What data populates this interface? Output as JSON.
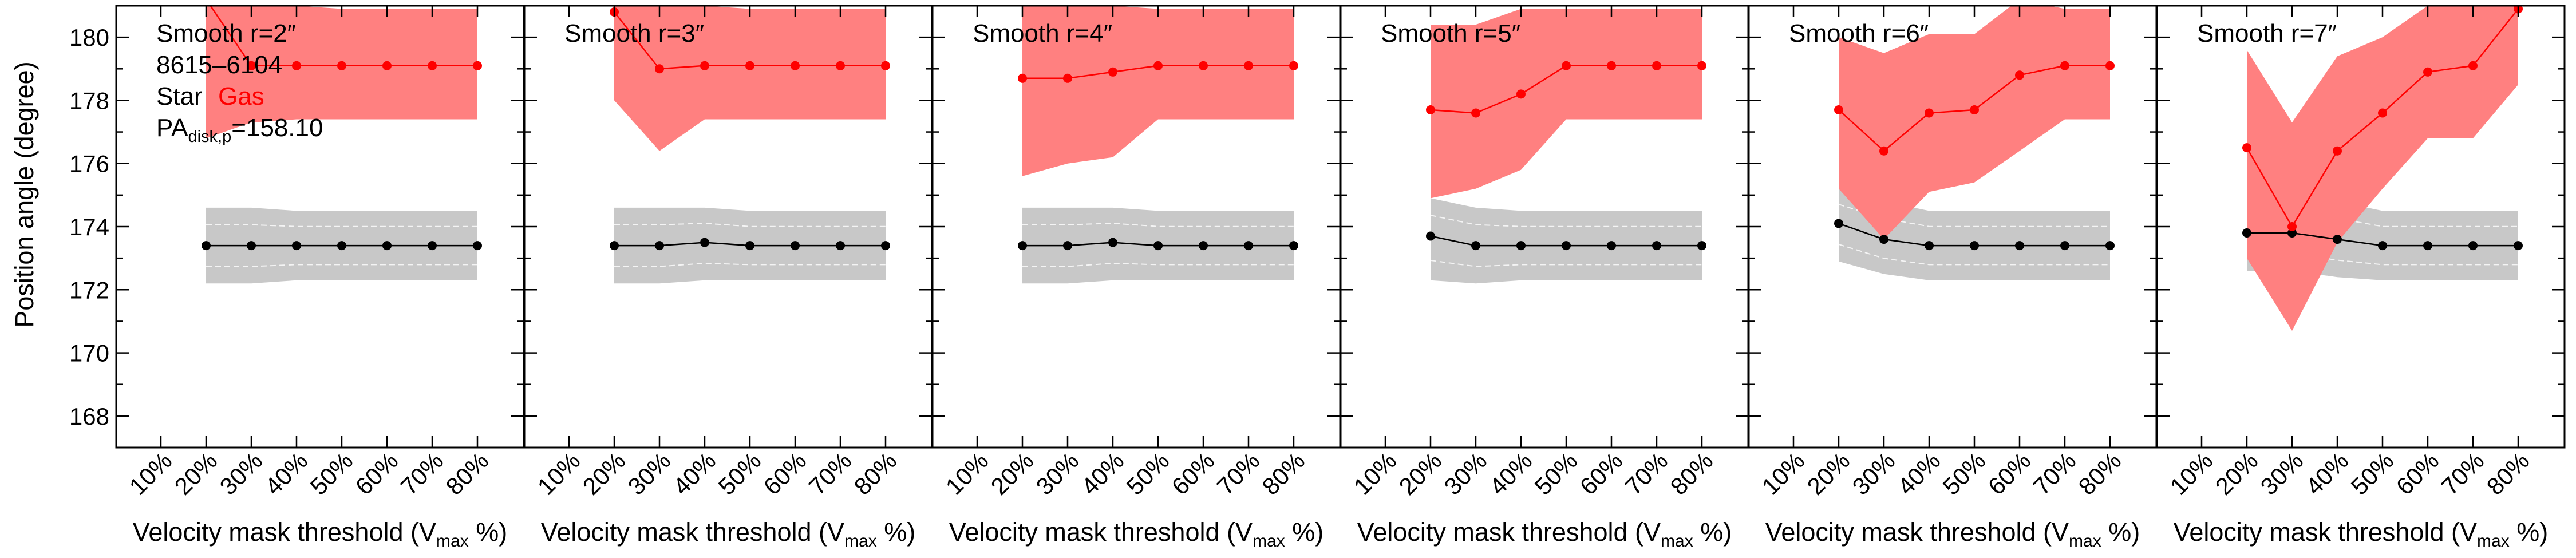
{
  "figure": {
    "ylabel": "Position angle (degree)",
    "xlabel_main": "Velocity mask threshold (V",
    "xlabel_sub": "max",
    "xlabel_tail": " %)",
    "annotation": {
      "galaxy_id": "8615–6104",
      "star_label": "Star",
      "gas_label": "Gas",
      "pa_main": "PA",
      "pa_sub": "disk,p",
      "pa_value": "=158.10"
    },
    "colors": {
      "star_line": "#000000",
      "star_band": "#c8c8c8",
      "gas_line": "#ff0000",
      "gas_band": "#ff8080",
      "inner_dash": "#ffffff"
    }
  },
  "chart_data": [
    {
      "type": "line",
      "title": "Smooth r=2″",
      "categories": [
        "10%",
        "20%",
        "30%",
        "40%",
        "50%",
        "60%",
        "70%",
        "80%"
      ],
      "ylim": [
        167,
        181
      ],
      "yticks": [
        168,
        170,
        172,
        174,
        176,
        178,
        180
      ],
      "grid": false,
      "series": [
        {
          "name": "Star",
          "x": [
            "20%",
            "30%",
            "40%",
            "50%",
            "60%",
            "70%",
            "80%"
          ],
          "values": [
            173.4,
            173.4,
            173.4,
            173.4,
            173.4,
            173.4,
            173.4
          ],
          "band_low": [
            172.2,
            172.2,
            172.3,
            172.3,
            172.3,
            172.3,
            172.3
          ],
          "band_high": [
            174.6,
            174.6,
            174.5,
            174.5,
            174.5,
            174.5,
            174.5
          ]
        },
        {
          "name": "Gas",
          "x": [
            "20%",
            "30%",
            "40%",
            "50%",
            "60%",
            "70%",
            "80%"
          ],
          "values": [
            181.2,
            179.1,
            179.1,
            179.1,
            179.1,
            179.1,
            179.1
          ],
          "band_low": [
            176.8,
            177.3,
            177.4,
            177.4,
            177.4,
            177.4,
            177.4
          ],
          "band_high": [
            181.2,
            181.2,
            181.0,
            180.9,
            180.9,
            180.9,
            180.9
          ]
        }
      ]
    },
    {
      "type": "line",
      "title": "Smooth r=3″",
      "categories": [
        "10%",
        "20%",
        "30%",
        "40%",
        "50%",
        "60%",
        "70%",
        "80%"
      ],
      "ylim": [
        167,
        181
      ],
      "yticks": [
        168,
        170,
        172,
        174,
        176,
        178,
        180
      ],
      "grid": false,
      "series": [
        {
          "name": "Star",
          "x": [
            "20%",
            "30%",
            "40%",
            "50%",
            "60%",
            "70%",
            "80%"
          ],
          "values": [
            173.4,
            173.4,
            173.5,
            173.4,
            173.4,
            173.4,
            173.4
          ],
          "band_low": [
            172.2,
            172.2,
            172.3,
            172.3,
            172.3,
            172.3,
            172.3
          ],
          "band_high": [
            174.6,
            174.6,
            174.6,
            174.5,
            174.5,
            174.5,
            174.5
          ]
        },
        {
          "name": "Gas",
          "x": [
            "20%",
            "30%",
            "40%",
            "50%",
            "60%",
            "70%",
            "80%"
          ],
          "values": [
            180.8,
            179.0,
            179.1,
            179.1,
            179.1,
            179.1,
            179.1
          ],
          "band_low": [
            178.0,
            176.4,
            177.4,
            177.4,
            177.4,
            177.4,
            177.4
          ],
          "band_high": [
            181.2,
            181.2,
            181.0,
            180.9,
            180.9,
            180.9,
            180.9
          ]
        }
      ]
    },
    {
      "type": "line",
      "title": "Smooth r=4″",
      "categories": [
        "10%",
        "20%",
        "30%",
        "40%",
        "50%",
        "60%",
        "70%",
        "80%"
      ],
      "ylim": [
        167,
        181
      ],
      "yticks": [
        168,
        170,
        172,
        174,
        176,
        178,
        180
      ],
      "grid": false,
      "series": [
        {
          "name": "Star",
          "x": [
            "20%",
            "30%",
            "40%",
            "50%",
            "60%",
            "70%",
            "80%"
          ],
          "values": [
            173.4,
            173.4,
            173.5,
            173.4,
            173.4,
            173.4,
            173.4
          ],
          "band_low": [
            172.2,
            172.2,
            172.3,
            172.3,
            172.3,
            172.3,
            172.3
          ],
          "band_high": [
            174.6,
            174.6,
            174.6,
            174.5,
            174.5,
            174.5,
            174.5
          ]
        },
        {
          "name": "Gas",
          "x": [
            "20%",
            "30%",
            "40%",
            "50%",
            "60%",
            "70%",
            "80%"
          ],
          "values": [
            178.7,
            178.7,
            178.9,
            179.1,
            179.1,
            179.1,
            179.1
          ],
          "band_low": [
            175.6,
            176.0,
            176.2,
            177.4,
            177.4,
            177.4,
            177.4
          ],
          "band_high": [
            181.2,
            181.2,
            181.0,
            180.9,
            180.9,
            180.9,
            180.9
          ]
        }
      ]
    },
    {
      "type": "line",
      "title": "Smooth r=5″",
      "categories": [
        "10%",
        "20%",
        "30%",
        "40%",
        "50%",
        "60%",
        "70%",
        "80%"
      ],
      "ylim": [
        167,
        181
      ],
      "yticks": [
        168,
        170,
        172,
        174,
        176,
        178,
        180
      ],
      "grid": false,
      "series": [
        {
          "name": "Star",
          "x": [
            "20%",
            "30%",
            "40%",
            "50%",
            "60%",
            "70%",
            "80%"
          ],
          "values": [
            173.7,
            173.4,
            173.4,
            173.4,
            173.4,
            173.4,
            173.4
          ],
          "band_low": [
            172.3,
            172.2,
            172.3,
            172.3,
            172.3,
            172.3,
            172.3
          ],
          "band_high": [
            174.9,
            174.6,
            174.5,
            174.5,
            174.5,
            174.5,
            174.5
          ]
        },
        {
          "name": "Gas",
          "x": [
            "20%",
            "30%",
            "40%",
            "50%",
            "60%",
            "70%",
            "80%"
          ],
          "values": [
            177.7,
            177.6,
            178.2,
            179.1,
            179.1,
            179.1,
            179.1
          ],
          "band_low": [
            174.9,
            175.2,
            175.8,
            177.4,
            177.4,
            177.4,
            177.4
          ],
          "band_high": [
            180.4,
            180.4,
            180.9,
            180.9,
            180.9,
            180.9,
            180.9
          ]
        }
      ]
    },
    {
      "type": "line",
      "title": "Smooth r=6″",
      "categories": [
        "10%",
        "20%",
        "30%",
        "40%",
        "50%",
        "60%",
        "70%",
        "80%"
      ],
      "ylim": [
        167,
        181
      ],
      "yticks": [
        168,
        170,
        172,
        174,
        176,
        178,
        180
      ],
      "grid": false,
      "series": [
        {
          "name": "Star",
          "x": [
            "20%",
            "30%",
            "40%",
            "50%",
            "60%",
            "70%",
            "80%"
          ],
          "values": [
            174.1,
            173.6,
            173.4,
            173.4,
            173.4,
            173.4,
            173.4
          ],
          "band_low": [
            172.9,
            172.5,
            172.3,
            172.3,
            172.3,
            172.3,
            172.3
          ],
          "band_high": [
            175.2,
            174.8,
            174.5,
            174.5,
            174.5,
            174.5,
            174.5
          ]
        },
        {
          "name": "Gas",
          "x": [
            "20%",
            "30%",
            "40%",
            "50%",
            "60%",
            "70%",
            "80%"
          ],
          "values": [
            177.7,
            176.4,
            177.6,
            177.7,
            178.8,
            179.1,
            179.1
          ],
          "band_low": [
            175.2,
            173.6,
            175.1,
            175.4,
            176.4,
            177.4,
            177.4
          ],
          "band_high": [
            180.0,
            179.5,
            180.1,
            180.1,
            181.2,
            180.9,
            180.9
          ]
        }
      ]
    },
    {
      "type": "line",
      "title": "Smooth r=7″",
      "categories": [
        "10%",
        "20%",
        "30%",
        "40%",
        "50%",
        "60%",
        "70%",
        "80%"
      ],
      "ylim": [
        167,
        181
      ],
      "yticks": [
        168,
        170,
        172,
        174,
        176,
        178,
        180
      ],
      "grid": false,
      "series": [
        {
          "name": "Star",
          "x": [
            "20%",
            "30%",
            "40%",
            "50%",
            "60%",
            "70%",
            "80%"
          ],
          "values": [
            173.8,
            173.8,
            173.6,
            173.4,
            173.4,
            173.4,
            173.4
          ],
          "band_low": [
            172.6,
            172.6,
            172.4,
            172.3,
            172.3,
            172.3,
            172.3
          ],
          "band_high": [
            175.0,
            175.0,
            174.8,
            174.5,
            174.5,
            174.5,
            174.5
          ]
        },
        {
          "name": "Gas",
          "x": [
            "20%",
            "30%",
            "40%",
            "50%",
            "60%",
            "70%",
            "80%"
          ],
          "values": [
            176.5,
            174.0,
            176.4,
            177.6,
            178.9,
            179.1,
            180.9
          ],
          "band_low": [
            173.0,
            170.7,
            173.5,
            175.2,
            176.8,
            176.8,
            178.5
          ],
          "band_high": [
            179.6,
            177.3,
            179.4,
            180.0,
            181.0,
            181.2,
            181.2
          ]
        }
      ]
    }
  ]
}
